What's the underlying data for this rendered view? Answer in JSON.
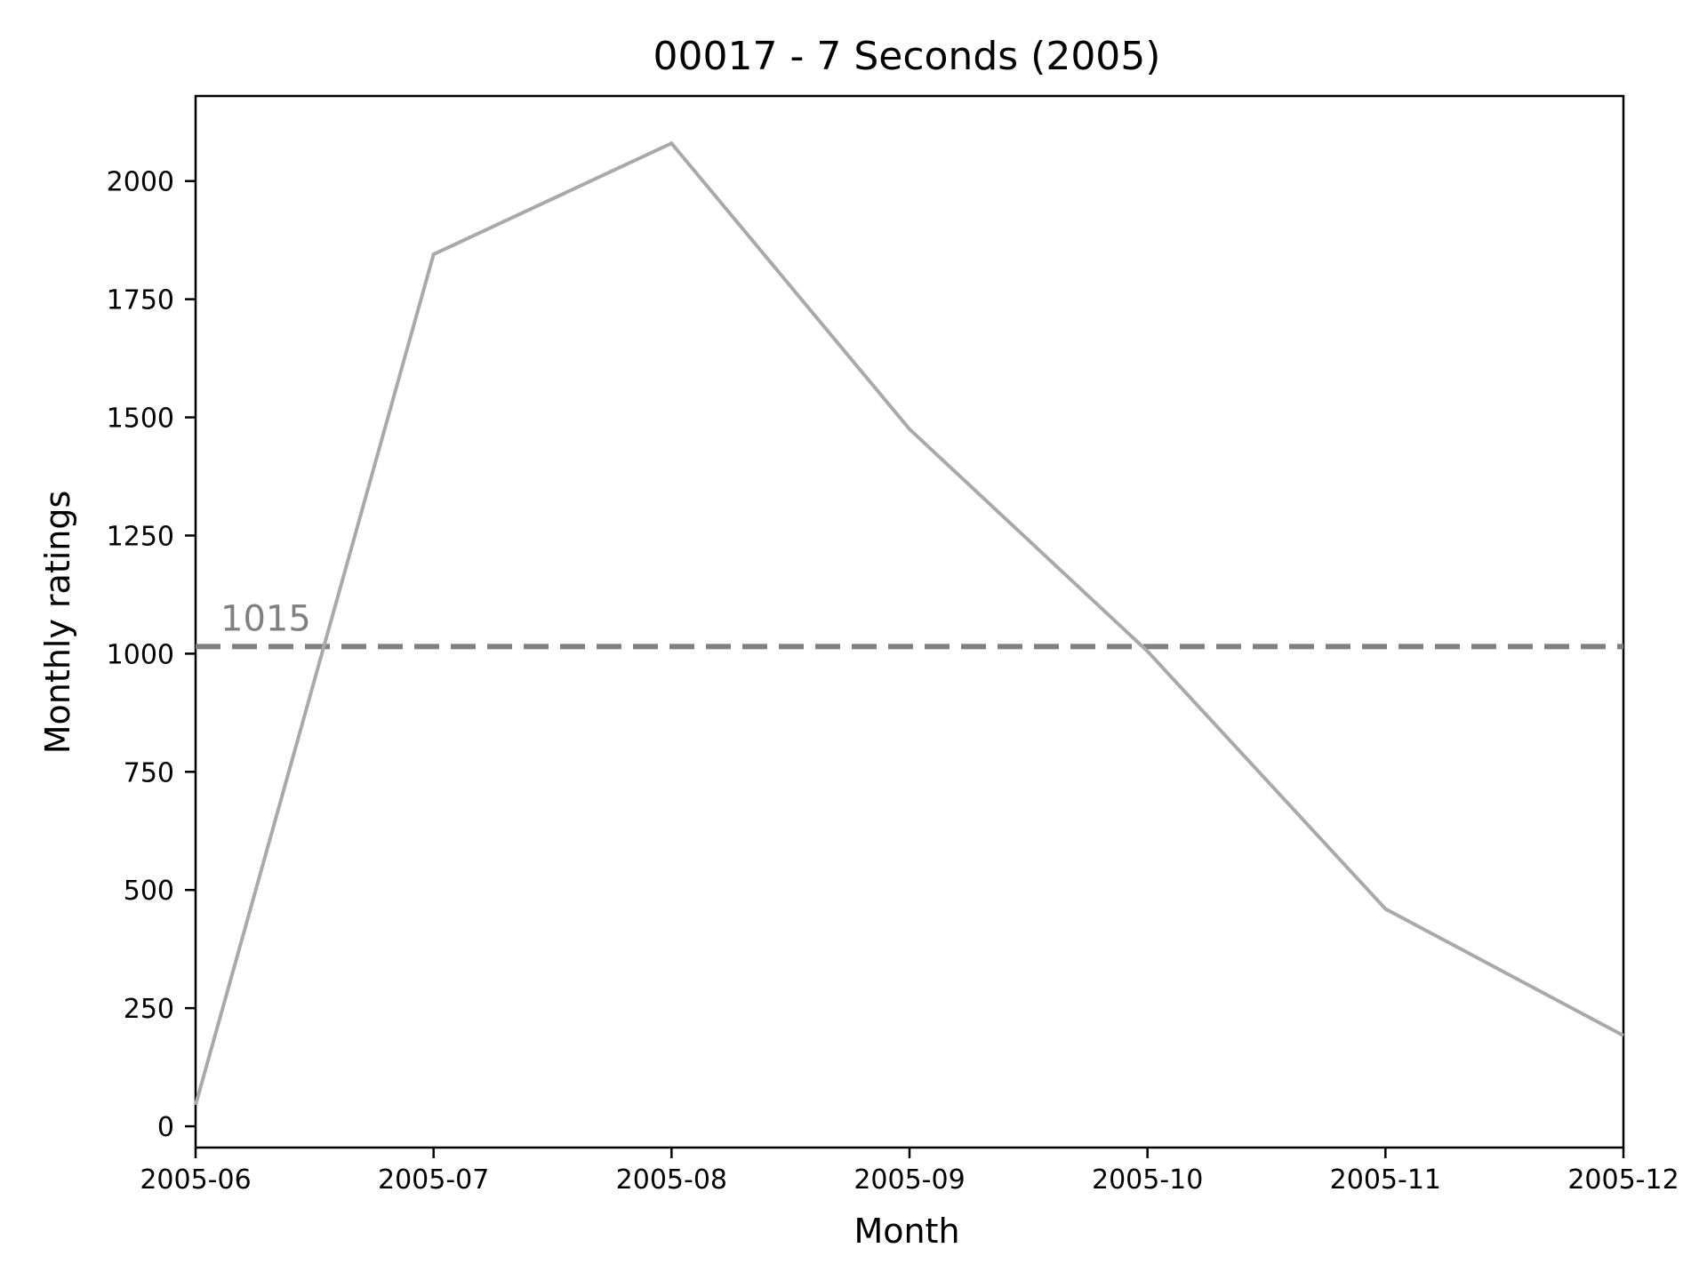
{
  "chart_data": {
    "type": "line",
    "title": "00017 - 7 Seconds (2005)",
    "xlabel": "Month",
    "ylabel": "Monthly ratings",
    "x": [
      "2005-06",
      "2005-07",
      "2005-08",
      "2005-09",
      "2005-10",
      "2005-11",
      "2005-12"
    ],
    "x_tick_labels": [
      "2005-06",
      "2005-07",
      "2005-08",
      "2005-09",
      "2005-10",
      "2005-11",
      "2005-12"
    ],
    "series": [
      {
        "values": [
          45,
          1845,
          2080,
          1475,
          1005,
          460,
          192
        ],
        "color": "#a9a9a9"
      }
    ],
    "reference_line": {
      "value": 1015,
      "label": "1015",
      "color": "#808080",
      "style": "dashed"
    },
    "ylim": [
      -45,
      2180
    ],
    "y_ticks": [
      0,
      250,
      500,
      750,
      1000,
      1250,
      1500,
      1750,
      2000
    ],
    "y_tick_labels": [
      "0",
      "250",
      "500",
      "750",
      "1000",
      "1250",
      "1500",
      "1750",
      "2000"
    ],
    "grid": false,
    "legend": "none"
  }
}
